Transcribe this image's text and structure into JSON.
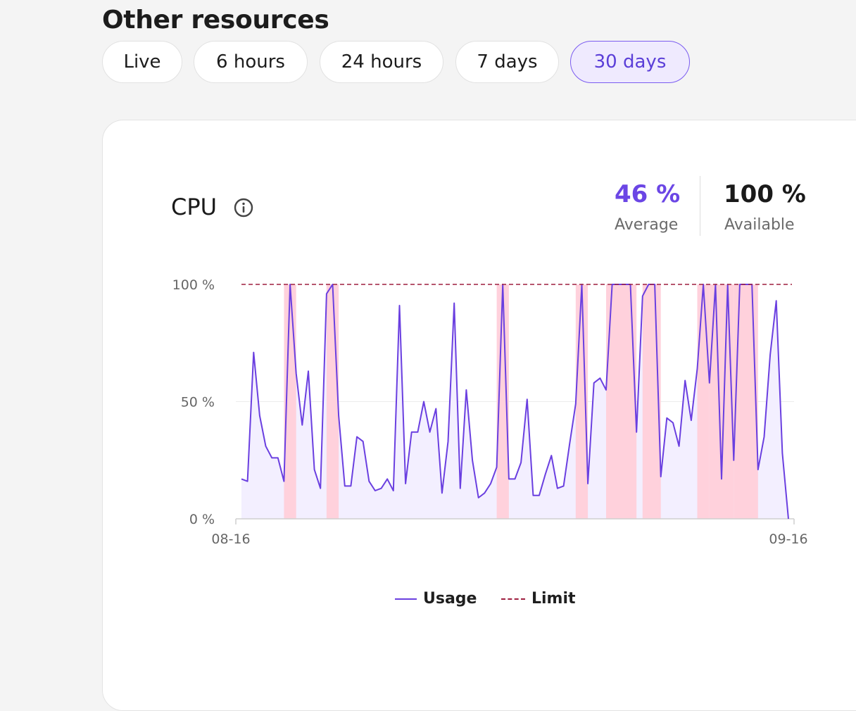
{
  "section": {
    "title": "Other resources"
  },
  "time_range": {
    "options": [
      "Live",
      "6 hours",
      "24 hours",
      "7 days",
      "30 days"
    ],
    "selected": "30 days"
  },
  "cpu_card": {
    "title": "CPU",
    "stats": {
      "average": {
        "value": "46 %",
        "label": "Average"
      },
      "available": {
        "value": "100 %",
        "label": "Available"
      }
    },
    "legend": {
      "usage": "Usage",
      "limit": "Limit"
    }
  },
  "colors": {
    "accent": "#6b46e5",
    "usage_line": "#6a3fe0",
    "usage_fill": "#f3efff",
    "over_limit_fill": "#ffd1dc",
    "limit_line": "#9e1f3f"
  },
  "chart_data": {
    "type": "line",
    "title": "CPU",
    "ylabel": "",
    "xlabel": "",
    "y_ticks": [
      "0 %",
      "50 %",
      "100 %"
    ],
    "y_tick_values": [
      0,
      50,
      100
    ],
    "x_tick_labels": [
      "08-16",
      "09-16"
    ],
    "ylim": [
      0,
      100
    ],
    "grid": true,
    "legend_position": "bottom",
    "series": [
      {
        "name": "Usage",
        "values": [
          17,
          16,
          71,
          44,
          31,
          26,
          26,
          16,
          100,
          62,
          40,
          63,
          21,
          13,
          96,
          100,
          44,
          14,
          14,
          35,
          33,
          16,
          12,
          13,
          17,
          12,
          91,
          15,
          37,
          37,
          50,
          37,
          47,
          11,
          33,
          92,
          13,
          55,
          25,
          9,
          11,
          15,
          22,
          100,
          17,
          17,
          24,
          51,
          10,
          10,
          19,
          27,
          13,
          14,
          32,
          49,
          100,
          15,
          58,
          60,
          55,
          100,
          100,
          100,
          100,
          37,
          95,
          100,
          100,
          18,
          43,
          41,
          31,
          59,
          42,
          64,
          100,
          58,
          100,
          17,
          100,
          25,
          100,
          100,
          100,
          21,
          35,
          70,
          93,
          28,
          0
        ]
      },
      {
        "name": "Limit",
        "values": [
          100,
          100
        ]
      }
    ]
  }
}
